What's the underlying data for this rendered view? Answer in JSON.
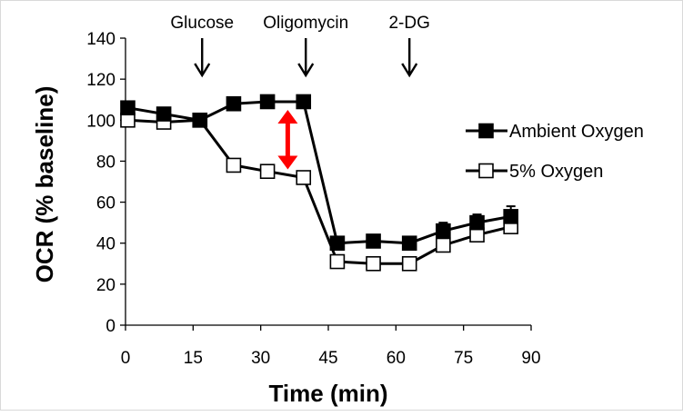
{
  "chart_data": {
    "type": "line",
    "title": "",
    "xlabel": "Time (min)",
    "ylabel": "OCR (% baseline)",
    "xlim": [
      0,
      90
    ],
    "ylim": [
      0,
      140
    ],
    "xticks": [
      0,
      15,
      30,
      45,
      60,
      75,
      90
    ],
    "yticks": [
      0,
      20,
      40,
      60,
      80,
      100,
      120,
      140
    ],
    "grid": false,
    "legend_position": "right",
    "series": [
      {
        "name": "Ambient Oxygen",
        "marker": "filled-square",
        "color": "#000000",
        "x": [
          0.5,
          8.5,
          16.5,
          24,
          31.5,
          39.5,
          47,
          55,
          63,
          70.5,
          78,
          85.5
        ],
        "values": [
          106,
          103,
          100,
          108,
          109,
          109,
          40,
          41,
          40,
          46,
          50,
          53
        ],
        "error_upper": [
          3,
          2,
          1,
          3,
          3,
          3,
          2,
          2,
          2,
          4,
          4,
          5
        ]
      },
      {
        "name": "5% Oxygen",
        "marker": "open-square",
        "color": "#000000",
        "x": [
          0.5,
          8.5,
          16.5,
          24,
          31.5,
          39.5,
          47,
          55,
          63,
          70.5,
          78,
          85.5
        ],
        "values": [
          100,
          99,
          100,
          78,
          75,
          72,
          31,
          30,
          30,
          39,
          44,
          48
        ],
        "error_upper": [
          1,
          1,
          1,
          1,
          1,
          1,
          1,
          1,
          1,
          1,
          1,
          1
        ]
      }
    ],
    "annotations": [
      {
        "label": "Glucose",
        "x": 17
      },
      {
        "label": "Oligomycin",
        "x": 40
      },
      {
        "label": "2-DG",
        "x": 63
      }
    ],
    "highlight": {
      "x": 36,
      "y_from": 76,
      "y_to": 105,
      "color": "#ff0000"
    }
  }
}
